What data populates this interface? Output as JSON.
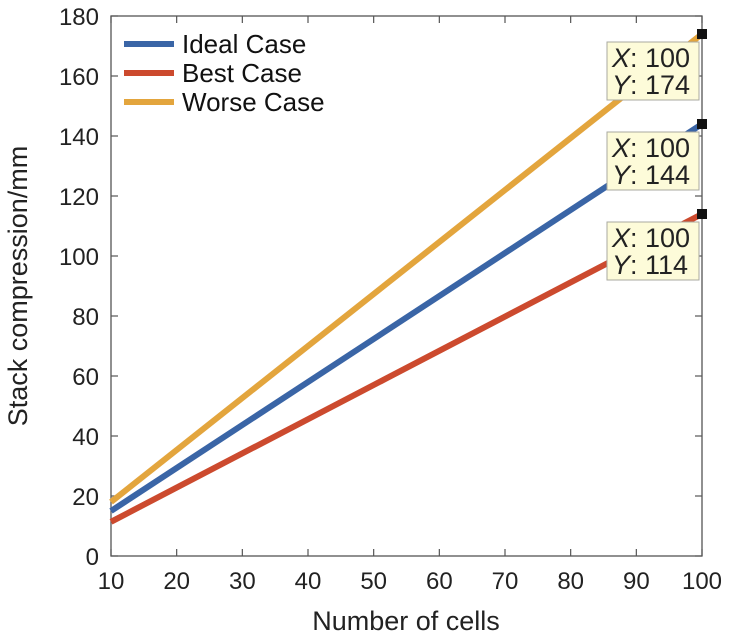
{
  "chart_data": {
    "type": "line",
    "xlabel": "Number of cells",
    "ylabel": "Stack compression/mm",
    "xlim": [
      10,
      100
    ],
    "ylim": [
      0,
      180
    ],
    "xticks": [
      10,
      20,
      30,
      40,
      50,
      60,
      70,
      80,
      90,
      100
    ],
    "yticks": [
      0,
      20,
      40,
      60,
      80,
      100,
      120,
      140,
      160,
      180
    ],
    "grid": false,
    "legend_position": "top-left",
    "series": [
      {
        "name": "Ideal Case",
        "color": "#3a65a6",
        "x": [
          10,
          100
        ],
        "y": [
          15,
          144
        ]
      },
      {
        "name": "Best Case",
        "color": "#cc4a2e",
        "x": [
          10,
          100
        ],
        "y": [
          11.4,
          114
        ]
      },
      {
        "name": "Worse Case",
        "color": "#e3a53d",
        "x": [
          10,
          100
        ],
        "y": [
          18,
          174
        ]
      }
    ],
    "datatips": [
      {
        "series": "Worse Case",
        "x": 100,
        "y": 174,
        "x_key": "X",
        "y_key": "Y",
        "x_text": ": 100",
        "y_text": ": 174"
      },
      {
        "series": "Ideal Case",
        "x": 100,
        "y": 144,
        "x_key": "X",
        "y_key": "Y",
        "x_text": ": 100",
        "y_text": ": 144"
      },
      {
        "series": "Best Case",
        "x": 100,
        "y": 114,
        "x_key": "X",
        "y_key": "Y",
        "x_text": ": 100",
        "y_text": ": 114"
      }
    ]
  }
}
